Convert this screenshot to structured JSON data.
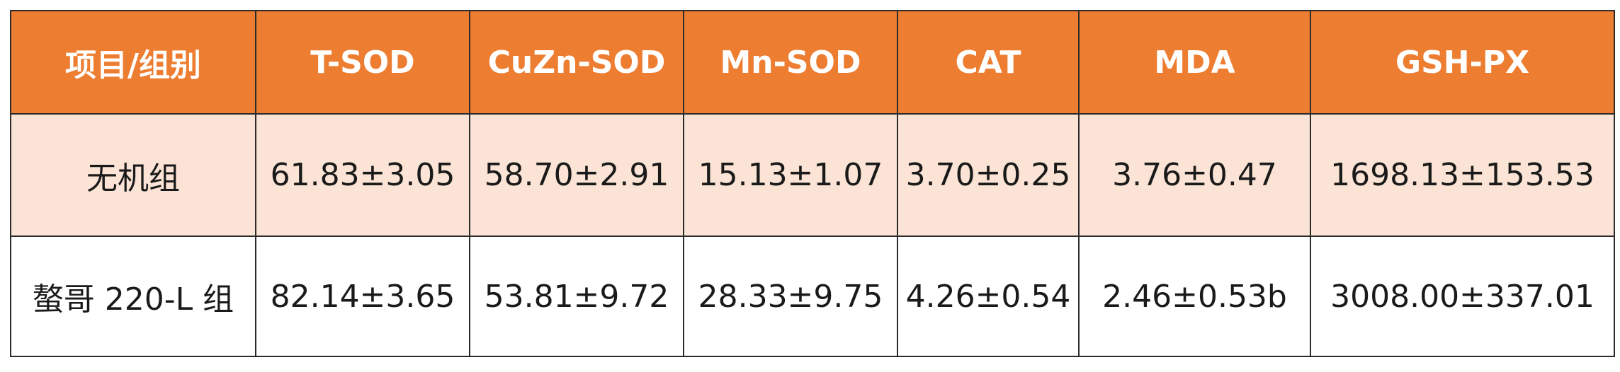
{
  "table": {
    "colors": {
      "header_bg": "#ED7D31",
      "header_text": "#FFFFFF",
      "row_shaded_bg": "#FBE4D5",
      "row_plain_bg": "#FFFFFF",
      "border": "#2B2B2B"
    },
    "headers": [
      "项目/组别",
      "T-SOD",
      "CuZn-SOD",
      "Mn-SOD",
      "CAT",
      "MDA",
      "GSH-PX"
    ],
    "rows": [
      [
        "无机组",
        "61.83±3.05",
        "58.70±2.91",
        "15.13±1.07",
        "3.70±0.25",
        "3.76±0.47",
        "1698.13±153.53"
      ],
      [
        "螯哥 220-L 组",
        "82.14±3.65",
        "53.81±9.72",
        "28.33±9.75",
        "4.26±0.54",
        "2.46±0.53b",
        "3008.00±337.01"
      ]
    ]
  }
}
